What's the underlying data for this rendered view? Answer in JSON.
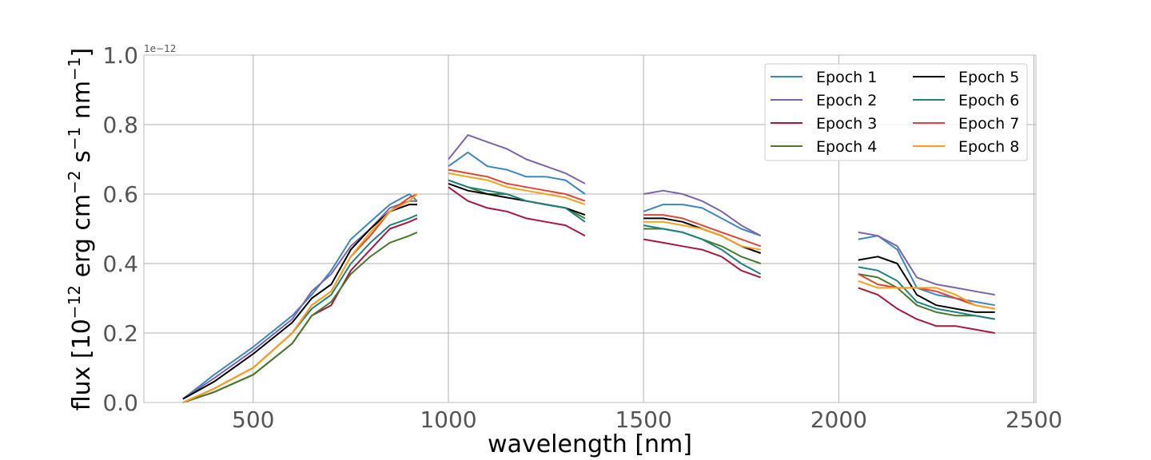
{
  "chart_data": {
    "type": "line",
    "title": "",
    "xlabel": "wavelength [nm]",
    "ylabel": "flux [10^-12 erg cm^-2 s^-1 nm^-1]",
    "ylabel_parts": [
      "flux [10",
      "−12",
      " erg cm",
      "−2",
      " s",
      "−1",
      " nm",
      "−1",
      "]"
    ],
    "y_offset_label": "1e−12",
    "xlim": [
      220,
      2505
    ],
    "ylim": [
      0,
      1.0
    ],
    "x_ticks": [
      500,
      1000,
      1500,
      2000,
      2500
    ],
    "x_tick_labels": [
      "500",
      "1000",
      "1500",
      "2000",
      "2500"
    ],
    "y_ticks": [
      0.0,
      0.2,
      0.4,
      0.6,
      0.8,
      1.0
    ],
    "y_tick_labels": [
      "0.0",
      "0.2",
      "0.4",
      "0.6",
      "0.8",
      "1.0"
    ],
    "grid": true,
    "legend_position": "top-right",
    "legend_columns": 2,
    "series": [
      {
        "name": "Epoch 1",
        "color": "#3e86c1",
        "segments": [
          {
            "x": [
              320,
              400,
              500,
              600,
              650,
              700,
              750,
              800,
              850,
              900,
              920
            ],
            "y": [
              0.01,
              0.08,
              0.16,
              0.25,
              0.31,
              0.38,
              0.47,
              0.52,
              0.57,
              0.6,
              0.58
            ]
          },
          {
            "x": [
              1000,
              1050,
              1100,
              1150,
              1200,
              1250,
              1300,
              1350
            ],
            "y": [
              0.68,
              0.72,
              0.68,
              0.67,
              0.65,
              0.65,
              0.64,
              0.6
            ]
          },
          {
            "x": [
              1500,
              1550,
              1600,
              1650,
              1700,
              1750,
              1800
            ],
            "y": [
              0.55,
              0.57,
              0.57,
              0.56,
              0.53,
              0.5,
              0.48
            ]
          },
          {
            "x": [
              2050,
              2100,
              2150,
              2200,
              2250,
              2300,
              2350,
              2400
            ],
            "y": [
              0.47,
              0.48,
              0.44,
              0.33,
              0.31,
              0.3,
              0.29,
              0.28
            ]
          }
        ]
      },
      {
        "name": "Epoch 2",
        "color": "#7b64a9",
        "segments": [
          {
            "x": [
              320,
              400,
              500,
              600,
              650,
              700,
              750,
              800,
              850,
              900,
              920
            ],
            "y": [
              0.01,
              0.07,
              0.15,
              0.24,
              0.32,
              0.37,
              0.45,
              0.5,
              0.56,
              0.58,
              0.58
            ]
          },
          {
            "x": [
              1000,
              1050,
              1100,
              1150,
              1200,
              1250,
              1300,
              1350
            ],
            "y": [
              0.7,
              0.77,
              0.75,
              0.73,
              0.7,
              0.68,
              0.66,
              0.63
            ]
          },
          {
            "x": [
              1500,
              1550,
              1600,
              1650,
              1700,
              1750,
              1800
            ],
            "y": [
              0.6,
              0.61,
              0.6,
              0.58,
              0.55,
              0.51,
              0.48
            ]
          },
          {
            "x": [
              2050,
              2100,
              2150,
              2200,
              2250,
              2300,
              2350,
              2400
            ],
            "y": [
              0.49,
              0.48,
              0.45,
              0.36,
              0.34,
              0.33,
              0.32,
              0.31
            ]
          }
        ]
      },
      {
        "name": "Epoch 3",
        "color": "#a8173f",
        "segments": [
          {
            "x": [
              320,
              400,
              500,
              600,
              650,
              700,
              750,
              800,
              850,
              900,
              920
            ],
            "y": [
              0.0,
              0.03,
              0.08,
              0.17,
              0.25,
              0.28,
              0.38,
              0.44,
              0.5,
              0.52,
              0.53
            ]
          },
          {
            "x": [
              1000,
              1050,
              1100,
              1150,
              1200,
              1250,
              1300,
              1350
            ],
            "y": [
              0.62,
              0.58,
              0.56,
              0.55,
              0.53,
              0.52,
              0.51,
              0.48
            ]
          },
          {
            "x": [
              1500,
              1550,
              1600,
              1650,
              1700,
              1750,
              1800
            ],
            "y": [
              0.47,
              0.46,
              0.45,
              0.44,
              0.42,
              0.38,
              0.36
            ]
          },
          {
            "x": [
              2050,
              2100,
              2150,
              2200,
              2250,
              2300,
              2350,
              2400
            ],
            "y": [
              0.33,
              0.31,
              0.27,
              0.24,
              0.22,
              0.22,
              0.21,
              0.2
            ]
          }
        ]
      },
      {
        "name": "Epoch 4",
        "color": "#467a2c",
        "segments": [
          {
            "x": [
              320,
              400,
              500,
              600,
              650,
              700,
              750,
              800,
              850,
              900,
              920
            ],
            "y": [
              0.0,
              0.03,
              0.08,
              0.17,
              0.25,
              0.29,
              0.37,
              0.42,
              0.46,
              0.48,
              0.49
            ]
          },
          {
            "x": [
              1000,
              1050,
              1100,
              1150,
              1200,
              1250,
              1300,
              1350
            ],
            "y": [
              0.64,
              0.62,
              0.6,
              0.6,
              0.58,
              0.57,
              0.56,
              0.53
            ]
          },
          {
            "x": [
              1500,
              1550,
              1600,
              1650,
              1700,
              1750,
              1800
            ],
            "y": [
              0.5,
              0.5,
              0.49,
              0.47,
              0.45,
              0.42,
              0.4
            ]
          },
          {
            "x": [
              2050,
              2100,
              2150,
              2200,
              2250,
              2300,
              2350,
              2400
            ],
            "y": [
              0.37,
              0.36,
              0.33,
              0.28,
              0.26,
              0.25,
              0.25,
              0.24
            ]
          }
        ]
      },
      {
        "name": "Epoch 5",
        "color": "#000000",
        "segments": [
          {
            "x": [
              320,
              400,
              500,
              600,
              650,
              700,
              750,
              800,
              850,
              900,
              920
            ],
            "y": [
              0.01,
              0.06,
              0.14,
              0.23,
              0.3,
              0.34,
              0.44,
              0.5,
              0.55,
              0.57,
              0.57
            ]
          },
          {
            "x": [
              1000,
              1050,
              1100,
              1150,
              1200,
              1250,
              1300,
              1350
            ],
            "y": [
              0.63,
              0.61,
              0.6,
              0.59,
              0.58,
              0.57,
              0.56,
              0.54
            ]
          },
          {
            "x": [
              1500,
              1550,
              1600,
              1650,
              1700,
              1750,
              1800
            ],
            "y": [
              0.53,
              0.53,
              0.52,
              0.5,
              0.48,
              0.45,
              0.43
            ]
          },
          {
            "x": [
              2050,
              2100,
              2150,
              2200,
              2250,
              2300,
              2350,
              2400
            ],
            "y": [
              0.41,
              0.42,
              0.4,
              0.31,
              0.28,
              0.27,
              0.26,
              0.26
            ]
          }
        ]
      },
      {
        "name": "Epoch 6",
        "color": "#1f8281",
        "segments": [
          {
            "x": [
              320,
              400,
              500,
              600,
              650,
              700,
              750,
              800,
              850,
              900,
              920
            ],
            "y": [
              0.0,
              0.04,
              0.1,
              0.2,
              0.27,
              0.31,
              0.4,
              0.46,
              0.51,
              0.53,
              0.54
            ]
          },
          {
            "x": [
              1000,
              1050,
              1100,
              1150,
              1200,
              1250,
              1300,
              1350
            ],
            "y": [
              0.64,
              0.62,
              0.61,
              0.6,
              0.58,
              0.57,
              0.56,
              0.52
            ]
          },
          {
            "x": [
              1500,
              1550,
              1600,
              1650,
              1700,
              1750,
              1800
            ],
            "y": [
              0.51,
              0.5,
              0.49,
              0.47,
              0.44,
              0.4,
              0.37
            ]
          },
          {
            "x": [
              2050,
              2100,
              2150,
              2200,
              2250,
              2300,
              2350,
              2400
            ],
            "y": [
              0.39,
              0.38,
              0.35,
              0.29,
              0.27,
              0.26,
              0.25,
              0.24
            ]
          }
        ]
      },
      {
        "name": "Epoch 7",
        "color": "#e0453a",
        "segments": [
          {
            "x": [
              320,
              400,
              500,
              600,
              650,
              700,
              750,
              800,
              850,
              900,
              920
            ],
            "y": [
              0.0,
              0.04,
              0.1,
              0.2,
              0.28,
              0.32,
              0.42,
              0.48,
              0.55,
              0.59,
              0.6
            ]
          },
          {
            "x": [
              1000,
              1050,
              1100,
              1150,
              1200,
              1250,
              1300,
              1350
            ],
            "y": [
              0.67,
              0.66,
              0.65,
              0.63,
              0.62,
              0.61,
              0.6,
              0.58
            ]
          },
          {
            "x": [
              1500,
              1550,
              1600,
              1650,
              1700,
              1750,
              1800
            ],
            "y": [
              0.54,
              0.54,
              0.53,
              0.51,
              0.49,
              0.47,
              0.45
            ]
          },
          {
            "x": [
              2050,
              2100,
              2150,
              2200,
              2250,
              2300,
              2350,
              2400
            ],
            "y": [
              0.37,
              0.34,
              0.33,
              0.33,
              0.32,
              0.3,
              0.28,
              0.27
            ]
          }
        ]
      },
      {
        "name": "Epoch 8",
        "color": "#f9a11b",
        "segments": [
          {
            "x": [
              320,
              400,
              500,
              600,
              650,
              700,
              750,
              800,
              850,
              900,
              920
            ],
            "y": [
              0.0,
              0.04,
              0.1,
              0.2,
              0.28,
              0.32,
              0.42,
              0.49,
              0.55,
              0.58,
              0.6
            ]
          },
          {
            "x": [
              1000,
              1050,
              1100,
              1150,
              1200,
              1250,
              1300,
              1350
            ],
            "y": [
              0.66,
              0.65,
              0.64,
              0.62,
              0.61,
              0.6,
              0.59,
              0.57
            ]
          },
          {
            "x": [
              1500,
              1550,
              1600,
              1650,
              1700,
              1750,
              1800
            ],
            "y": [
              0.52,
              0.52,
              0.51,
              0.5,
              0.48,
              0.45,
              0.44
            ]
          },
          {
            "x": [
              2050,
              2100,
              2150,
              2200,
              2250,
              2300,
              2350,
              2400
            ],
            "y": [
              0.35,
              0.33,
              0.33,
              0.33,
              0.33,
              0.31,
              0.28,
              0.27
            ]
          }
        ]
      }
    ]
  }
}
